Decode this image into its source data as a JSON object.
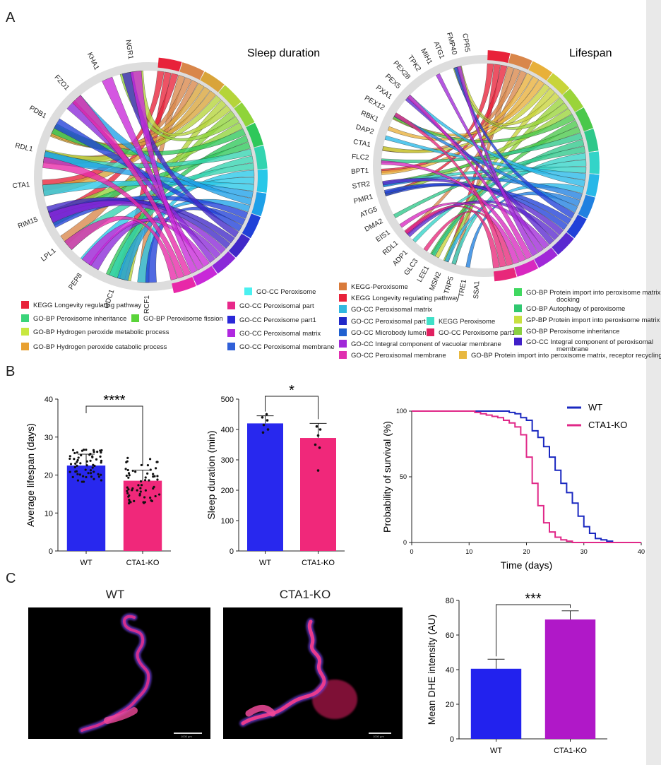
{
  "panels": {
    "a": "A",
    "b": "B",
    "c": "C"
  },
  "chord_sleep": {
    "title": "Sleep duration",
    "genes": [
      "RCF1",
      "ODC1",
      "PEP8",
      "LPL1",
      "RIM15",
      "CTA1",
      "RDL1",
      "PDB1",
      "FZO1",
      "KHA1",
      "NGR1"
    ],
    "term_colors": [
      "#e8223a",
      "#d9864a",
      "#d9a43a",
      "#b5d43a",
      "#8fd43a",
      "#2ec85a",
      "#33d4b0",
      "#28c8e8",
      "#1ea0e8",
      "#2040d8",
      "#4028c8",
      "#8a28d8",
      "#c828d8",
      "#e828a8"
    ]
  },
  "chord_life": {
    "title": "Lifespan",
    "genes": [
      "SSA1",
      "TRE1",
      "TRP5",
      "MSN2",
      "LEE1",
      "GLC3",
      "ADP1",
      "RDL1",
      "EIS1",
      "DMA2",
      "ATG5",
      "PMR1",
      "STR2",
      "BPT1",
      "FLC2",
      "CTA1",
      "DAP2",
      "RBK1",
      "PEX12",
      "PXA1",
      "PEX5",
      "PEX28",
      "TPK2",
      "MIH1",
      "ATG1",
      "FMP40",
      "CPR5"
    ],
    "term_colors": [
      "#e8223a",
      "#d9864a",
      "#e8b03a",
      "#c8d43a",
      "#9ad43a",
      "#4ac84a",
      "#2ec88a",
      "#33d4c8",
      "#28b8e8",
      "#2080e0",
      "#2040d8",
      "#5a28d0",
      "#a028d8",
      "#d828c0",
      "#e8287a"
    ]
  },
  "legend_sleep": [
    {
      "label": "KEGG Longevity regulating pathway",
      "color": "#e8223a"
    },
    {
      "label": "GO-BP Peroxisome inheritance",
      "color": "#3ad47a"
    },
    {
      "label": "GO-BP Hydrogen peroxide metabolic process",
      "color": "#c8e840"
    },
    {
      "label": "GO-BP Hydrogen peroxide catabolic process",
      "color": "#e8a030"
    },
    {
      "label": "GO-BP Peroxisome fission",
      "color": "#5ad43a"
    },
    {
      "label": "GO-CC Peroxisome",
      "color": "#4af0f0"
    },
    {
      "label": "GO-CC Peroxisomal  part",
      "color": "#e8288a"
    },
    {
      "label": "GO-CC Peroxisome part1",
      "color": "#2a28d8"
    },
    {
      "label": "GO-CC Peroxisomal matrix",
      "color": "#b028e0"
    },
    {
      "label": "GO-CC Peroxisomal membrane",
      "color": "#3060d8"
    }
  ],
  "legend_life": [
    {
      "label": "KEGG-Peroxisome",
      "color": "#d97a3a"
    },
    {
      "label": "KEGG Longevity regulating pathway",
      "color": "#e8223a"
    },
    {
      "label": "GO-CC Peroxisomal matrix",
      "color": "#30b8e0"
    },
    {
      "label": "GO-CC Peroxisomal part",
      "color": "#2028c8"
    },
    {
      "label": "GO-CC Microbody lumen",
      "color": "#2060d0"
    },
    {
      "label": "GO-CC Integral component of vacuolar membrane",
      "color": "#a028d8"
    },
    {
      "label": "GO-CC Peroxisomal membrane",
      "color": "#e030b0"
    },
    {
      "label": "KEGG Peroxisome",
      "color": "#40e0c8"
    },
    {
      "label": "GO-CC Peroxisome part1",
      "color": "#e02060"
    },
    {
      "label": "GO-BP Protein import into peroxisome matrix, receptor recycling",
      "color": "#e8b840"
    },
    {
      "label": "GO-BP Protein import into peroxisome matrix,",
      "label2": "docking",
      "color": "#40d860"
    },
    {
      "label": "GO-BP Autophagy of peroxisome",
      "color": "#30c870"
    },
    {
      "label": "GP-BP Protein import into peroxisome matrix",
      "color": "#c8e040"
    },
    {
      "label": "GO-BP Peroxisome inheritance",
      "color": "#8ad040"
    },
    {
      "label": "GO-CC Integral component of peroxisomal",
      "label2": "membrane",
      "color": "#4020c8"
    }
  ],
  "chart_data": [
    {
      "type": "bar",
      "id": "lifespan",
      "categories": [
        "WT",
        "CTA1-KO"
      ],
      "values": [
        22.5,
        18.5
      ],
      "errors": [
        3.0,
        2.8
      ],
      "colors": [
        "#2828ee",
        "#f0287a"
      ],
      "ylabel": "Average lifespan (days)",
      "ylim": [
        0,
        40
      ],
      "yticks": [
        0,
        10,
        20,
        30,
        40
      ],
      "significance": "****"
    },
    {
      "type": "bar",
      "id": "sleep",
      "categories": [
        "WT",
        "CTA1-KO"
      ],
      "values": [
        420,
        372
      ],
      "errors": [
        25,
        48
      ],
      "colors": [
        "#2828ee",
        "#f0287a"
      ],
      "ylabel": "Sleep duration (min)",
      "ylim": [
        0,
        500
      ],
      "yticks": [
        0,
        100,
        200,
        300,
        400,
        500
      ],
      "significance": "*"
    },
    {
      "type": "line",
      "id": "survival",
      "xlabel": "Time (days)",
      "ylabel": "Probability of survival (%)",
      "xlim": [
        0,
        40
      ],
      "ylim": [
        0,
        100
      ],
      "xticks": [
        0,
        10,
        20,
        30,
        40
      ],
      "yticks": [
        0,
        50,
        100
      ],
      "series": [
        {
          "name": "WT",
          "color": "#1a28c0",
          "points": [
            [
              0,
              100
            ],
            [
              15,
              100
            ],
            [
              17,
              99
            ],
            [
              18,
              98
            ],
            [
              19,
              95
            ],
            [
              20,
              93
            ],
            [
              21,
              85
            ],
            [
              22,
              80
            ],
            [
              23,
              73
            ],
            [
              24,
              65
            ],
            [
              25,
              55
            ],
            [
              26,
              45
            ],
            [
              27,
              38
            ],
            [
              28,
              30
            ],
            [
              29,
              20
            ],
            [
              30,
              12
            ],
            [
              31,
              7
            ],
            [
              32,
              3
            ],
            [
              33,
              2
            ],
            [
              34,
              1
            ],
            [
              35,
              0
            ],
            [
              40,
              0
            ]
          ]
        },
        {
          "name": "CTA1-KO",
          "color": "#e02888",
          "points": [
            [
              0,
              100
            ],
            [
              10,
              100
            ],
            [
              11,
              99
            ],
            [
              12,
              98
            ],
            [
              13,
              97
            ],
            [
              14,
              96
            ],
            [
              15,
              95
            ],
            [
              16,
              93
            ],
            [
              17,
              91
            ],
            [
              18,
              88
            ],
            [
              19,
              82
            ],
            [
              20,
              65
            ],
            [
              21,
              45
            ],
            [
              22,
              28
            ],
            [
              23,
              15
            ],
            [
              24,
              8
            ],
            [
              25,
              4
            ],
            [
              26,
              2
            ],
            [
              27,
              1
            ],
            [
              28,
              0
            ],
            [
              40,
              0
            ]
          ]
        }
      ]
    },
    {
      "type": "bar",
      "id": "dhe",
      "categories": [
        "WT",
        "CTA1-KO"
      ],
      "values": [
        40.5,
        69
      ],
      "errors": [
        5.5,
        5
      ],
      "colors": [
        "#2222ee",
        "#b018c8"
      ],
      "ylabel": "Mean DHE intensity (AU)",
      "ylim": [
        0,
        80
      ],
      "yticks": [
        0,
        20,
        40,
        60,
        80
      ],
      "significance": "***"
    }
  ],
  "micro": {
    "wt_title": "WT",
    "ko_title": "CTA1-KO",
    "wt_scale": "1000 µm",
    "ko_scale": "1000 µm"
  }
}
